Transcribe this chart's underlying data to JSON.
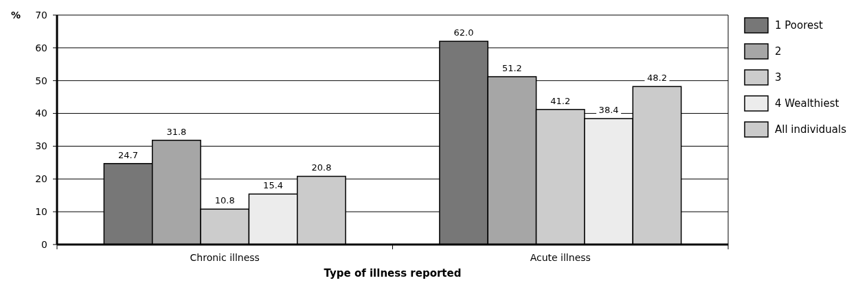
{
  "chart_data": {
    "type": "bar",
    "xlabel": "Type of illness reported",
    "ylabel": "%",
    "categories": [
      "Chronic illness",
      "Acute illness"
    ],
    "series": [
      {
        "name": "1 Poorest",
        "color": "#777777",
        "values": [
          24.7,
          62.0
        ]
      },
      {
        "name": "2",
        "color": "#a6a6a6",
        "values": [
          31.8,
          51.2
        ]
      },
      {
        "name": "3",
        "color": "#cccccc",
        "values": [
          10.8,
          41.2
        ]
      },
      {
        "name": "4 Wealthiest",
        "color": "#ececec",
        "values": [
          15.4,
          38.4
        ]
      },
      {
        "name": "All individuals",
        "color": "#cbcbcb",
        "values": [
          20.8,
          48.2
        ]
      }
    ],
    "value_labels": [
      [
        "24.7",
        "62.0"
      ],
      [
        "31.8",
        "51.2"
      ],
      [
        "10.8",
        "41.2"
      ],
      [
        "15.4",
        "38.4"
      ],
      [
        "20.8",
        "48.2"
      ]
    ],
    "ylim": [
      0,
      70
    ],
    "yticks": [
      0,
      10,
      20,
      30,
      40,
      50,
      60,
      70
    ],
    "grid": "y",
    "legend": "right"
  }
}
